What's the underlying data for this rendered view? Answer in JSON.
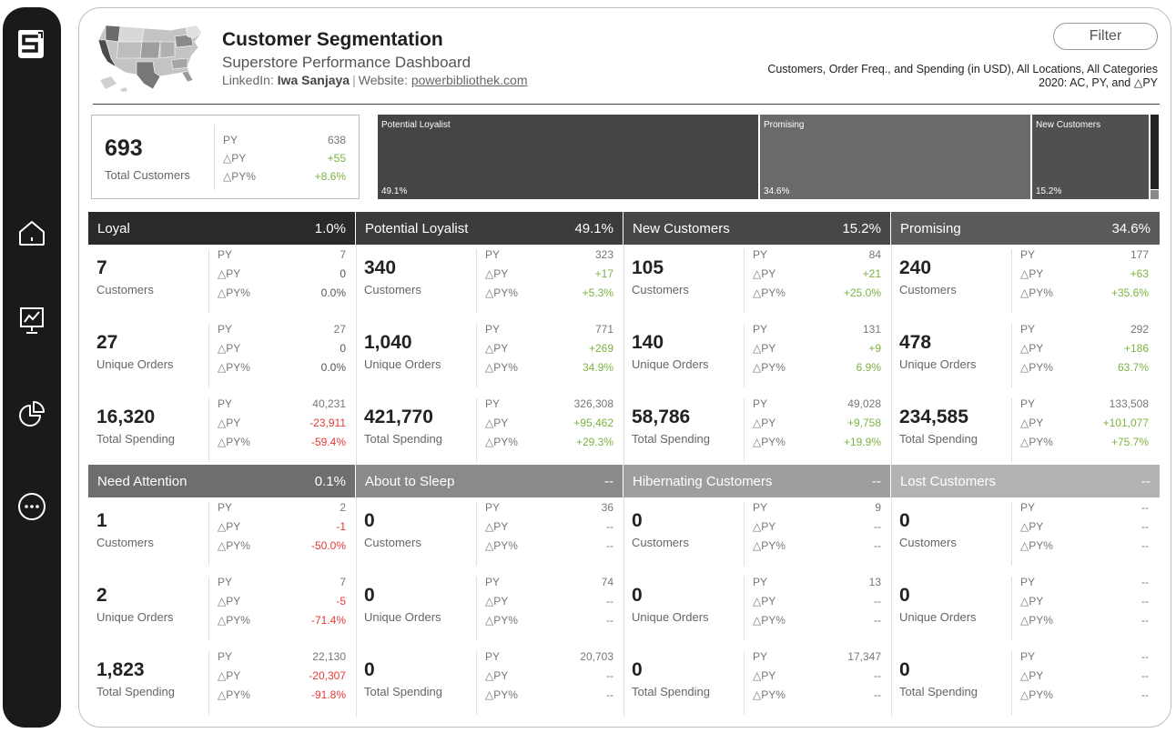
{
  "header": {
    "title": "Customer Segmentation",
    "subtitle": "Superstore Performance Dashboard",
    "linkedin_label": "LinkedIn:",
    "linkedin_name": "Iwa Sanjaya",
    "website_label": "Website:",
    "website_url": "powerbibliothek.com",
    "filter_label": "Filter",
    "scope_line1": "Customers, Order Freq., and Spending (in USD), All Locations, All Categories",
    "scope_line2": "2020: AC, PY, and △PY"
  },
  "sidebar": {
    "icons": [
      "logo-s-icon",
      "home-icon",
      "presentation-chart-icon",
      "pie-chart-icon",
      "more-dots-icon"
    ]
  },
  "total": {
    "value": "693",
    "label": "Total Customers",
    "py_label": "PY",
    "py_value": "638",
    "dpy_label": "△PY",
    "dpy_value": "+55",
    "dpyp_label": "△PY%",
    "dpyp_value": "+8.6%"
  },
  "treemap": [
    {
      "name": "Potential Loyalist",
      "pct": "49.1%",
      "color": "#454545"
    },
    {
      "name": "Promising",
      "pct": "34.6%",
      "color": "#6a6a6a"
    },
    {
      "name": "New Customers",
      "pct": "15.2%",
      "color": "#505050"
    }
  ],
  "labels": {
    "py": "PY",
    "dpy": "△PY",
    "dpyp": "△PY%",
    "customers": "Customers",
    "orders": "Unique Orders",
    "spending": "Total Spending"
  },
  "segments": [
    {
      "name": "Loyal",
      "pct": "1.0%",
      "customers": {
        "val": "7",
        "py": "7",
        "d": "0",
        "dp": "0.0%"
      },
      "orders": {
        "val": "27",
        "py": "27",
        "d": "0",
        "dp": "0.0%"
      },
      "spending": {
        "val": "16,320",
        "py": "40,231",
        "d": "-23,911",
        "dp": "-59.4%"
      }
    },
    {
      "name": "Potential Loyalist",
      "pct": "49.1%",
      "customers": {
        "val": "340",
        "py": "323",
        "d": "+17",
        "dp": "+5.3%"
      },
      "orders": {
        "val": "1,040",
        "py": "771",
        "d": "+269",
        "dp": "34.9%"
      },
      "spending": {
        "val": "421,770",
        "py": "326,308",
        "d": "+95,462",
        "dp": "+29.3%"
      }
    },
    {
      "name": "New Customers",
      "pct": "15.2%",
      "customers": {
        "val": "105",
        "py": "84",
        "d": "+21",
        "dp": "+25.0%"
      },
      "orders": {
        "val": "140",
        "py": "131",
        "d": "+9",
        "dp": "6.9%"
      },
      "spending": {
        "val": "58,786",
        "py": "49,028",
        "d": "+9,758",
        "dp": "+19.9%"
      }
    },
    {
      "name": "Promising",
      "pct": "34.6%",
      "customers": {
        "val": "240",
        "py": "177",
        "d": "+63",
        "dp": "+35.6%"
      },
      "orders": {
        "val": "478",
        "py": "292",
        "d": "+186",
        "dp": "63.7%"
      },
      "spending": {
        "val": "234,585",
        "py": "133,508",
        "d": "+101,077",
        "dp": "+75.7%"
      }
    },
    {
      "name": "Need Attention",
      "pct": "0.1%",
      "customers": {
        "val": "1",
        "py": "2",
        "d": "-1",
        "dp": "-50.0%"
      },
      "orders": {
        "val": "2",
        "py": "7",
        "d": "-5",
        "dp": "-71.4%"
      },
      "spending": {
        "val": "1,823",
        "py": "22,130",
        "d": "-20,307",
        "dp": "-91.8%"
      }
    },
    {
      "name": "About to Sleep",
      "pct": "--",
      "customers": {
        "val": "0",
        "py": "36",
        "d": "--",
        "dp": "--"
      },
      "orders": {
        "val": "0",
        "py": "74",
        "d": "--",
        "dp": "--"
      },
      "spending": {
        "val": "0",
        "py": "20,703",
        "d": "--",
        "dp": "--"
      }
    },
    {
      "name": "Hibernating Customers",
      "pct": "--",
      "customers": {
        "val": "0",
        "py": "9",
        "d": "--",
        "dp": "--"
      },
      "orders": {
        "val": "0",
        "py": "13",
        "d": "--",
        "dp": "--"
      },
      "spending": {
        "val": "0",
        "py": "17,347",
        "d": "--",
        "dp": "--"
      }
    },
    {
      "name": "Lost Customers",
      "pct": "--",
      "customers": {
        "val": "0",
        "py": "--",
        "d": "--",
        "dp": "--"
      },
      "orders": {
        "val": "0",
        "py": "--",
        "d": "--",
        "dp": "--"
      },
      "spending": {
        "val": "0",
        "py": "--",
        "d": "--",
        "dp": "--"
      }
    }
  ]
}
